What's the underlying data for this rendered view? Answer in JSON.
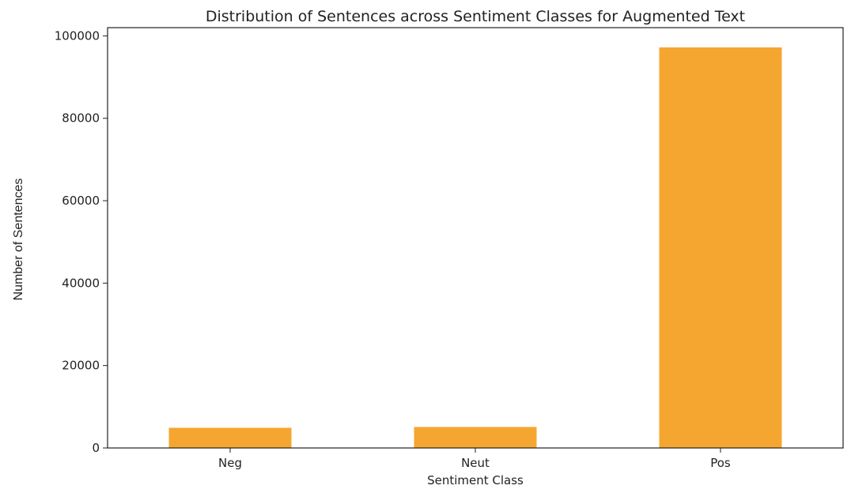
{
  "chart_data": {
    "type": "bar",
    "title": "Distribution of Sentences across Sentiment Classes for Augmented Text",
    "xlabel": "Sentiment Class",
    "ylabel": "Number of Sentences",
    "categories": [
      "Neg",
      "Neut",
      "Pos"
    ],
    "values": [
      4900,
      5100,
      97200
    ],
    "ylim": [
      0,
      102000
    ],
    "yticks": [
      0,
      20000,
      40000,
      60000,
      80000,
      100000
    ],
    "ytick_labels": [
      "0",
      "20000",
      "40000",
      "60000",
      "80000",
      "100000"
    ],
    "grid": false,
    "legend": "none",
    "bar_color": "#f5a630"
  }
}
